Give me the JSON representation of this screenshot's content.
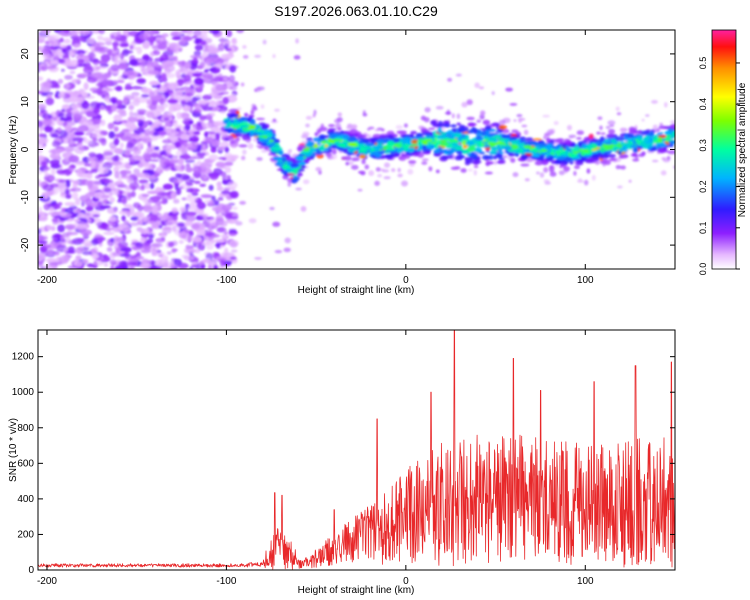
{
  "title": "S197.2026.063.01.10.C29",
  "colors": {
    "snr_line": "#e8282a",
    "axis": "#000000",
    "background": "#ffffff"
  },
  "chart_data": [
    {
      "type": "heatmap",
      "title": "S197.2026.063.01.10.C29",
      "xlabel": "Height of straight line (km)",
      "ylabel": "Frequency (Hz)",
      "xlim": [
        -205,
        150
      ],
      "ylim": [
        -25,
        25
      ],
      "x_ticks": [
        -200,
        -100,
        0,
        100
      ],
      "y_ticks": [
        -20,
        -10,
        0,
        10,
        20
      ],
      "x_tick_labels": [
        "-200",
        "-100",
        "0",
        "100"
      ],
      "y_tick_labels": [
        "-20",
        "-10",
        "0",
        "10",
        "20"
      ],
      "colorbar": {
        "label": "Normalized spectral amplitude",
        "range": [
          0.0,
          0.58
        ],
        "ticks": [
          0.0,
          0.1,
          0.2,
          0.3,
          0.4,
          0.5
        ],
        "tick_labels": [
          "0.0",
          "0.1",
          "0.2",
          "0.3",
          "0.4",
          "0.5"
        ]
      },
      "band_centerline": [
        {
          "x": -100,
          "y": 5.5
        },
        {
          "x": -85,
          "y": 4.5
        },
        {
          "x": -75,
          "y": 2
        },
        {
          "x": -68,
          "y": -3
        },
        {
          "x": -62,
          "y": -5
        },
        {
          "x": -55,
          "y": 0
        },
        {
          "x": -40,
          "y": 2
        },
        {
          "x": -20,
          "y": 0
        },
        {
          "x": 0,
          "y": 1
        },
        {
          "x": 20,
          "y": 2
        },
        {
          "x": 35,
          "y": 1
        },
        {
          "x": 50,
          "y": 1.5
        },
        {
          "x": 70,
          "y": 0
        },
        {
          "x": 90,
          "y": -1
        },
        {
          "x": 110,
          "y": 0.5
        },
        {
          "x": 130,
          "y": 1.5
        },
        {
          "x": 150,
          "y": 2.5
        }
      ]
    },
    {
      "type": "line",
      "xlabel": "Height of straight line (km)",
      "ylabel": "SNR (10 * v/v)",
      "xlim": [
        -205,
        150
      ],
      "ylim": [
        0,
        1350
      ],
      "x_ticks": [
        -200,
        -100,
        0,
        100
      ],
      "y_ticks": [
        0,
        200,
        400,
        600,
        800,
        1000,
        1200
      ],
      "x_tick_labels": [
        "-200",
        "-100",
        "0",
        "100"
      ],
      "y_tick_labels": [
        "0",
        "200",
        "400",
        "600",
        "800",
        "1000",
        "1200"
      ],
      "series": [
        {
          "name": "SNR",
          "envelope": [
            {
              "x": -205,
              "level": 25,
              "spread": 20
            },
            {
              "x": -90,
              "level": 25,
              "spread": 20
            },
            {
              "x": -80,
              "level": 35,
              "spread": 40
            },
            {
              "x": -72,
              "level": 120,
              "spread": 280
            },
            {
              "x": -65,
              "level": 80,
              "spread": 200
            },
            {
              "x": -58,
              "level": 30,
              "spread": 40
            },
            {
              "x": -45,
              "level": 80,
              "spread": 150
            },
            {
              "x": -30,
              "level": 150,
              "spread": 260
            },
            {
              "x": -15,
              "level": 200,
              "spread": 380
            },
            {
              "x": 0,
              "level": 280,
              "spread": 520
            },
            {
              "x": 20,
              "level": 330,
              "spread": 700
            },
            {
              "x": 50,
              "level": 380,
              "spread": 750
            },
            {
              "x": 80,
              "level": 350,
              "spread": 700
            },
            {
              "x": 110,
              "level": 330,
              "spread": 700
            },
            {
              "x": 150,
              "level": 350,
              "spread": 750
            }
          ],
          "peaks": [
            {
              "x": -73,
              "y": 435
            },
            {
              "x": -69,
              "y": 420
            },
            {
              "x": -40,
              "y": 340
            },
            {
              "x": -16,
              "y": 850
            },
            {
              "x": 27,
              "y": 1350
            },
            {
              "x": 14,
              "y": 1000
            },
            {
              "x": 60,
              "y": 1190
            },
            {
              "x": 75,
              "y": 1010
            },
            {
              "x": 105,
              "y": 1060
            },
            {
              "x": 128,
              "y": 1150
            },
            {
              "x": 148,
              "y": 1170
            }
          ]
        }
      ]
    }
  ]
}
